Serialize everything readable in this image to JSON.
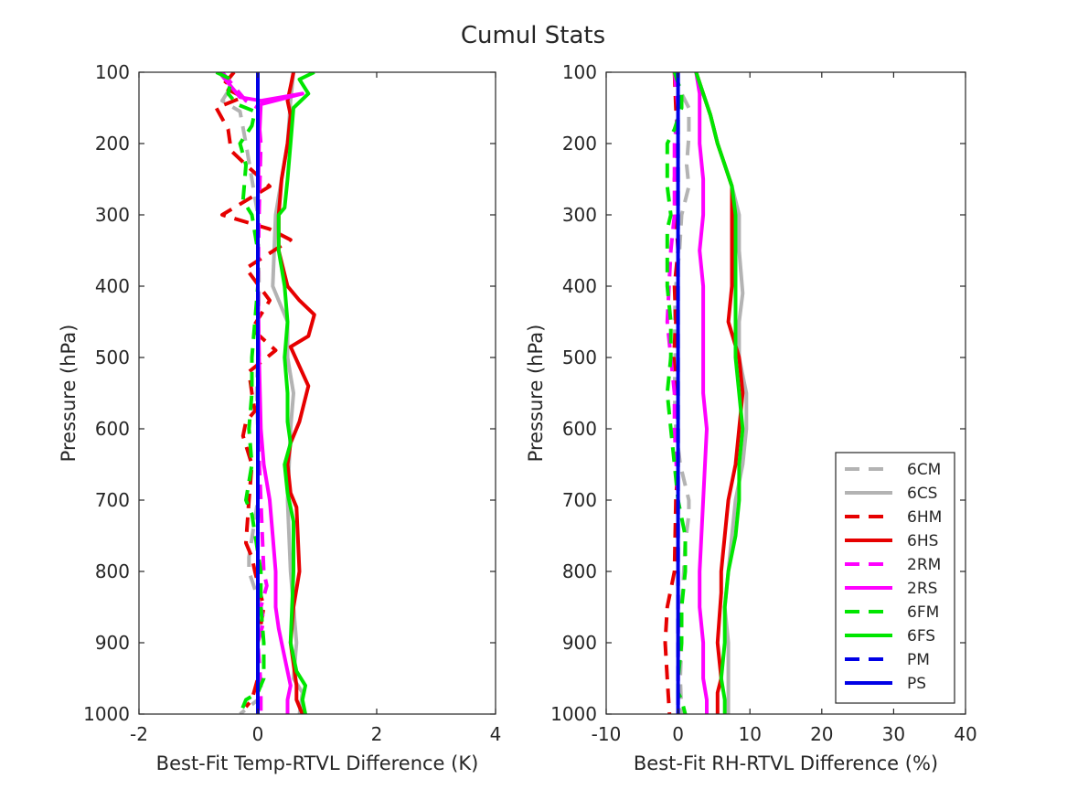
{
  "figure": {
    "title": "Cumul Stats"
  },
  "chart_data": [
    {
      "type": "line",
      "orientation": "vertical-profile",
      "xlabel": "Best-Fit Temp-RTVL Difference (K)",
      "ylabel": "Pressure (hPa)",
      "xlim": [
        -2,
        4
      ],
      "ylim": [
        1000,
        100
      ],
      "y_reversed": true,
      "xticks": [
        -2,
        0,
        2,
        4
      ],
      "yticks": [
        100,
        200,
        300,
        400,
        500,
        600,
        700,
        800,
        900,
        1000
      ],
      "grid": false,
      "series": [
        {
          "name": "6CM",
          "color": "#b3b3b3",
          "dash": true,
          "x": [
            -0.65,
            -0.45,
            -0.6,
            -0.3,
            -0.2,
            0.0,
            0.02,
            0.0,
            -0.02,
            0.0,
            0.0,
            -0.15,
            -0.15,
            0.05,
            0.0,
            0.0,
            -0.3
          ],
          "y": [
            100,
            120,
            140,
            155,
            200,
            300,
            400,
            500,
            550,
            600,
            700,
            780,
            800,
            850,
            900,
            980,
            1000
          ]
        },
        {
          "name": "6CS",
          "color": "#b3b3b3",
          "dash": false,
          "x": [
            0.6,
            0.55,
            0.5,
            0.4,
            0.3,
            0.25,
            0.5,
            0.5,
            0.6,
            0.55,
            0.5,
            0.55,
            0.6,
            0.65,
            0.6,
            0.75,
            0.7
          ],
          "y": [
            100,
            140,
            200,
            250,
            300,
            400,
            450,
            500,
            550,
            600,
            700,
            800,
            850,
            900,
            950,
            970,
            1000
          ]
        },
        {
          "name": "6HM",
          "color": "#e60000",
          "dash": true,
          "x": [
            -0.4,
            -0.6,
            -0.25,
            -0.7,
            -0.5,
            -0.45,
            -0.2,
            0.2,
            -0.3,
            -0.6,
            0.2,
            0.55,
            -0.2,
            0.2,
            -0.1,
            0.3,
            -0.15,
            -0.1,
            -0.05,
            -0.2,
            -0.25,
            -0.1,
            -0.15,
            -0.2,
            -0.1,
            -0.05,
            0.1,
            0.0,
            0.0,
            -0.1,
            -0.2
          ],
          "y": [
            100,
            120,
            135,
            150,
            180,
            210,
            230,
            260,
            285,
            300,
            320,
            335,
            375,
            420,
            460,
            490,
            520,
            550,
            575,
            590,
            610,
            650,
            700,
            760,
            780,
            800,
            850,
            900,
            950,
            980,
            990
          ]
        },
        {
          "name": "6HS",
          "color": "#e60000",
          "dash": false,
          "x": [
            0.6,
            0.55,
            0.5,
            0.55,
            0.5,
            0.4,
            0.35,
            0.35,
            0.5,
            0.7,
            0.95,
            0.85,
            0.55,
            0.85,
            0.7,
            0.55,
            0.5,
            0.55,
            0.65,
            0.7,
            0.6,
            0.55,
            0.65,
            0.65,
            0.7,
            0.75
          ],
          "y": [
            100,
            120,
            140,
            160,
            200,
            250,
            300,
            350,
            400,
            420,
            440,
            470,
            485,
            540,
            590,
            620,
            650,
            690,
            710,
            800,
            850,
            900,
            960,
            980,
            990,
            1000
          ]
        },
        {
          "name": "2RM",
          "color": "#ff00ff",
          "dash": true,
          "x": [
            -0.6,
            -0.4,
            -0.2,
            0.0,
            0.05,
            0.02,
            0.0,
            0.02,
            0.0,
            0.05,
            0.1,
            0.15,
            0.05,
            0.1,
            0.0,
            0.05,
            0.05
          ],
          "y": [
            100,
            120,
            140,
            150,
            200,
            300,
            400,
            500,
            600,
            700,
            800,
            820,
            850,
            870,
            900,
            960,
            1000
          ]
        },
        {
          "name": "2RS",
          "color": "#ff00ff",
          "dash": false,
          "x": [
            -0.65,
            -0.3,
            0.05,
            0.75,
            0.05,
            0.02,
            0.0,
            0.0,
            0.02,
            0.05,
            0.1,
            0.2,
            0.25,
            0.3,
            0.3,
            0.35,
            0.4,
            0.5,
            0.55,
            0.5,
            0.5
          ],
          "y": [
            100,
            135,
            140,
            130,
            145,
            200,
            300,
            400,
            500,
            600,
            650,
            700,
            750,
            800,
            850,
            880,
            900,
            940,
            960,
            980,
            1000
          ]
        },
        {
          "name": "6FM",
          "color": "#00e600",
          "dash": true,
          "x": [
            -0.7,
            -0.45,
            -0.5,
            -0.35,
            -0.05,
            -0.1,
            -0.3,
            -0.2,
            -0.25,
            -0.1,
            0.0,
            0.0,
            -0.05,
            -0.1,
            -0.1,
            -0.15,
            -0.1,
            -0.2,
            -0.1,
            0.05,
            0.05,
            0.1,
            0.1,
            0.0,
            -0.2,
            -0.25,
            -0.3
          ],
          "y": [
            100,
            110,
            130,
            145,
            155,
            175,
            200,
            230,
            280,
            300,
            350,
            400,
            450,
            500,
            550,
            600,
            650,
            700,
            720,
            800,
            850,
            900,
            950,
            970,
            980,
            990,
            1000
          ]
        },
        {
          "name": "6FS",
          "color": "#00e600",
          "dash": false,
          "x": [
            0.95,
            0.7,
            0.85,
            0.6,
            0.55,
            0.5,
            0.45,
            0.35,
            0.35,
            0.45,
            0.5,
            0.45,
            0.5,
            0.5,
            0.55,
            0.45,
            0.5,
            0.6,
            0.6,
            0.55,
            0.65,
            0.8,
            0.75,
            0.8
          ],
          "y": [
            100,
            110,
            130,
            150,
            200,
            250,
            290,
            300,
            350,
            400,
            450,
            500,
            550,
            590,
            620,
            650,
            690,
            730,
            800,
            900,
            940,
            960,
            980,
            1000
          ]
        },
        {
          "name": "PM",
          "color": "#0000e6",
          "dash": true,
          "x": [
            0.0,
            0.0
          ],
          "y": [
            100,
            1000
          ]
        },
        {
          "name": "PS",
          "color": "#0000e6",
          "dash": false,
          "x": [
            0.0,
            0.0
          ],
          "y": [
            100,
            1000
          ]
        }
      ]
    },
    {
      "type": "line",
      "orientation": "vertical-profile",
      "xlabel": "Best-Fit RH-RTVL Difference (%)",
      "ylabel": "Pressure (hPa)",
      "xlim": [
        -10,
        40
      ],
      "ylim": [
        1000,
        100
      ],
      "y_reversed": true,
      "xticks": [
        -10,
        0,
        10,
        20,
        30,
        40
      ],
      "yticks": [
        100,
        200,
        300,
        400,
        500,
        600,
        700,
        800,
        900,
        1000
      ],
      "grid": false,
      "legend": {
        "position": "bottom-right",
        "entries": [
          "6CM",
          "6CS",
          "6HM",
          "6HS",
          "2RM",
          "2RS",
          "6FM",
          "6FS",
          "PM",
          "PS"
        ]
      },
      "series": [
        {
          "name": "6CM",
          "color": "#b3b3b3",
          "dash": true,
          "x": [
            -0.5,
            0.5,
            1.5,
            1.5,
            1.2,
            1.5,
            0.5,
            0.2,
            -0.3,
            -0.5,
            -0.4,
            -0.5,
            -0.3,
            0.3,
            1.5,
            1.5,
            1.0,
            0.8,
            0.5,
            0.5,
            0.3,
            0.5
          ],
          "y": [
            100,
            130,
            150,
            190,
            230,
            260,
            300,
            350,
            400,
            450,
            500,
            550,
            600,
            650,
            700,
            720,
            760,
            800,
            850,
            900,
            950,
            1000
          ]
        },
        {
          "name": "6CS",
          "color": "#b3b3b3",
          "dash": false,
          "x": [
            2.5,
            3.5,
            4.5,
            5.5,
            6.5,
            7.5,
            8.5,
            8.5,
            9.0,
            8.5,
            8.5,
            9.5,
            9.5,
            9.0,
            8.0,
            7.5,
            7.0,
            6.5,
            7.0,
            7.0
          ],
          "y": [
            100,
            130,
            160,
            200,
            230,
            260,
            300,
            350,
            410,
            450,
            500,
            550,
            600,
            650,
            700,
            750,
            800,
            850,
            900,
            1000
          ]
        },
        {
          "name": "6HM",
          "color": "#e60000",
          "dash": true,
          "x": [
            -0.5,
            -0.3,
            0.0,
            -0.5,
            -0.3,
            0.0,
            -0.5,
            -0.3,
            -0.6,
            -0.3,
            0.0,
            0.0,
            -0.3,
            -0.5,
            -1.5,
            -1.8,
            -1.5,
            -1.2
          ],
          "y": [
            100,
            150,
            200,
            250,
            300,
            350,
            400,
            450,
            500,
            550,
            600,
            650,
            700,
            800,
            850,
            900,
            950,
            1000
          ]
        },
        {
          "name": "6HS",
          "color": "#e60000",
          "dash": false,
          "x": [
            2.5,
            3.5,
            4.5,
            5.5,
            6.5,
            7.5,
            7.5,
            7.5,
            7.5,
            7.0,
            8.5,
            9.0,
            8.5,
            8.0,
            7.0,
            6.5,
            6.0,
            6.0,
            5.5,
            6.0,
            5.5,
            5.5
          ],
          "y": [
            100,
            130,
            160,
            200,
            230,
            260,
            300,
            350,
            400,
            450,
            500,
            550,
            600,
            650,
            700,
            750,
            800,
            830,
            900,
            950,
            970,
            1000
          ]
        },
        {
          "name": "2RM",
          "color": "#ff00ff",
          "dash": true,
          "x": [
            -0.5,
            0.0,
            -0.5,
            -0.5,
            -0.5,
            -1.0,
            -1.5,
            -1.0,
            -0.5,
            -0.5,
            0.0,
            0.0,
            0.0,
            0.0,
            0.0,
            0.0
          ],
          "y": [
            100,
            150,
            200,
            250,
            300,
            350,
            450,
            500,
            550,
            600,
            700,
            750,
            800,
            850,
            900,
            1000
          ]
        },
        {
          "name": "2RS",
          "color": "#ff00ff",
          "dash": false,
          "x": [
            2.5,
            3.0,
            3.0,
            3.5,
            3.5,
            3.0,
            3.5,
            3.5,
            3.5,
            3.5,
            4.0,
            3.5,
            3.0,
            3.0,
            3.5,
            3.5,
            4.0,
            4.0
          ],
          "y": [
            100,
            130,
            200,
            250,
            300,
            350,
            400,
            450,
            500,
            550,
            600,
            700,
            800,
            850,
            900,
            950,
            980,
            1000
          ]
        },
        {
          "name": "6FM",
          "color": "#00e600",
          "dash": true,
          "x": [
            -0.5,
            0.5,
            0.5,
            -0.5,
            -1.5,
            -1.5,
            -1.0,
            -1.5,
            -1.5,
            -1.5,
            -1.0,
            -1.0,
            -1.5,
            -1.0,
            -0.5,
            0.0,
            1.0,
            1.0,
            0.5,
            0.5,
            0.0,
            0.0,
            0.5,
            1.0
          ],
          "y": [
            100,
            130,
            150,
            180,
            200,
            260,
            300,
            320,
            350,
            400,
            450,
            500,
            550,
            600,
            650,
            700,
            750,
            800,
            850,
            900,
            950,
            970,
            980,
            1000
          ]
        },
        {
          "name": "6FS",
          "color": "#00e600",
          "dash": false,
          "x": [
            2.5,
            3.5,
            4.5,
            5.5,
            6.5,
            7.5,
            8.0,
            8.0,
            8.0,
            8.0,
            8.0,
            8.5,
            9.0,
            8.5,
            8.5,
            8.0,
            7.0,
            6.5,
            6.5,
            6.0,
            6.5,
            6.5
          ],
          "y": [
            100,
            130,
            160,
            200,
            230,
            260,
            300,
            350,
            400,
            450,
            500,
            550,
            600,
            650,
            700,
            750,
            800,
            850,
            900,
            950,
            980,
            1000
          ]
        },
        {
          "name": "PM",
          "color": "#0000e6",
          "dash": true,
          "x": [
            0.0,
            0.0
          ],
          "y": [
            100,
            1000
          ]
        },
        {
          "name": "PS",
          "color": "#0000e6",
          "dash": false,
          "x": [
            0.0,
            0.0
          ],
          "y": [
            100,
            1000
          ]
        }
      ]
    }
  ]
}
